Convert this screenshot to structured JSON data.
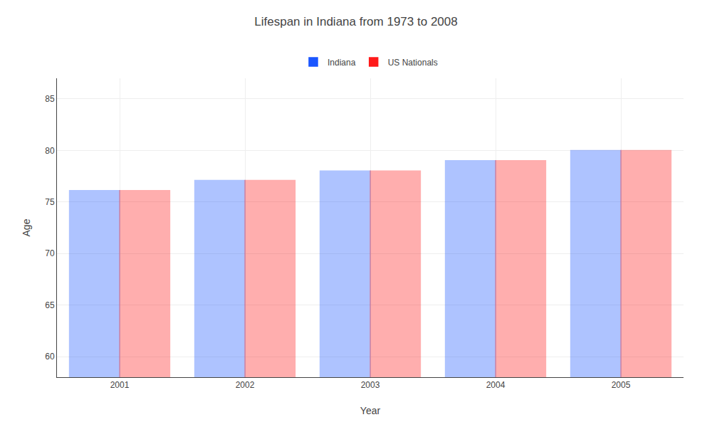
{
  "chart_data": {
    "type": "bar",
    "title": "Lifespan in Indiana from 1973 to 2008",
    "xlabel": "Year",
    "ylabel": "Age",
    "categories": [
      "2001",
      "2002",
      "2003",
      "2004",
      "2005"
    ],
    "series": [
      {
        "name": "Indiana",
        "color": "#1a56ff",
        "values": [
          76.1,
          77.1,
          78.0,
          79.0,
          80.0
        ]
      },
      {
        "name": "US Nationals",
        "color": "#ff1a1a",
        "values": [
          76.1,
          77.1,
          78.0,
          79.0,
          80.0
        ]
      }
    ],
    "ylim": [
      58,
      87
    ],
    "yticks": [
      60,
      65,
      70,
      75,
      80,
      85
    ],
    "grid": true,
    "legend": "top"
  }
}
